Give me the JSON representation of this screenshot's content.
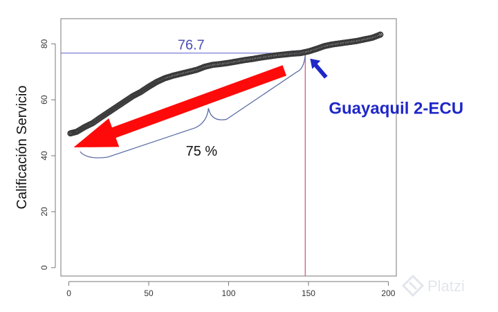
{
  "chart_data": {
    "type": "scatter",
    "title": "",
    "xlabel": "",
    "ylabel": "Calificación Servicio",
    "xlim": [
      -5,
      205
    ],
    "ylim": [
      -3,
      89
    ],
    "xticks": [
      0,
      50,
      100,
      150,
      200
    ],
    "yticks": [
      0,
      20,
      40,
      60,
      80
    ],
    "grid": false,
    "series": [
      {
        "color": "#3a3a3a",
        "points": [
          [
            1,
            48.0
          ],
          [
            5,
            48.6
          ],
          [
            10,
            50.3
          ],
          [
            15,
            51.7
          ],
          [
            20,
            53.7
          ],
          [
            25,
            55.6
          ],
          [
            30,
            57.5
          ],
          [
            35,
            59.4
          ],
          [
            40,
            61.3
          ],
          [
            45,
            62.8
          ],
          [
            50,
            64.7
          ],
          [
            55,
            66.4
          ],
          [
            60,
            67.7
          ],
          [
            65,
            68.6
          ],
          [
            70,
            69.3
          ],
          [
            75,
            70.0
          ],
          [
            80,
            70.7
          ],
          [
            85,
            71.8
          ],
          [
            90,
            72.5
          ],
          [
            95,
            72.8
          ],
          [
            100,
            73.2
          ],
          [
            105,
            73.7
          ],
          [
            110,
            74.2
          ],
          [
            115,
            74.6
          ],
          [
            120,
            75.1
          ],
          [
            125,
            75.5
          ],
          [
            130,
            75.9
          ],
          [
            135,
            76.2
          ],
          [
            140,
            76.5
          ],
          [
            145,
            76.7
          ],
          [
            150,
            77.3
          ],
          [
            155,
            78.2
          ],
          [
            160,
            79.2
          ],
          [
            165,
            79.8
          ],
          [
            170,
            80.2
          ],
          [
            175,
            80.6
          ],
          [
            180,
            81.0
          ],
          [
            185,
            81.6
          ],
          [
            190,
            82.2
          ],
          [
            195,
            83.3
          ]
        ]
      }
    ],
    "reference": {
      "h_value": 76.7,
      "v_value": 148,
      "h_color": "#7a7bd1",
      "v_color": "#d9608a"
    },
    "annotations": {
      "value_text": "76.7",
      "point_label": "Guayaquil 2-ECU",
      "percent_text": "75 %",
      "big_arrow_color": "#ff0a0a",
      "small_arrow_color": "#1f27c8",
      "brace_color": "#5b6ca3"
    }
  },
  "watermark": {
    "text": "Platzi",
    "icon": "platzi-logo-icon"
  }
}
